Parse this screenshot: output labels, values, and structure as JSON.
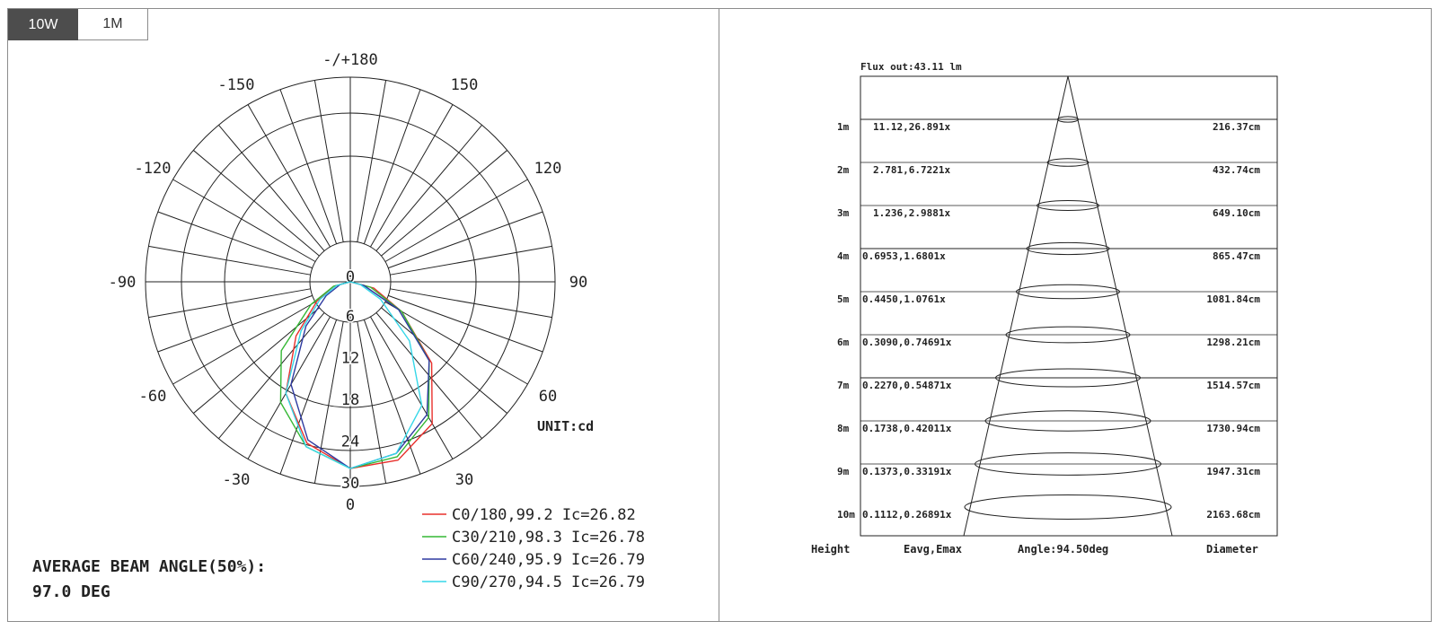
{
  "tabs": [
    {
      "label": "10W",
      "active": true
    },
    {
      "label": "1M",
      "active": false
    }
  ],
  "polar": {
    "top_label": "-/+180",
    "angle_labels": [
      {
        "deg": -150,
        "text": "-150"
      },
      {
        "deg": 150,
        "text": "150"
      },
      {
        "deg": -120,
        "text": "-120"
      },
      {
        "deg": 120,
        "text": "120"
      },
      {
        "deg": -90,
        "text": "-90"
      },
      {
        "deg": 90,
        "text": "90"
      },
      {
        "deg": -60,
        "text": "-60"
      },
      {
        "deg": 60,
        "text": "60"
      },
      {
        "deg": -30,
        "text": "-30"
      },
      {
        "deg": 30,
        "text": "30"
      },
      {
        "deg": 0,
        "text": "0"
      }
    ],
    "radial_labels": [
      "0",
      "6",
      "12",
      "18",
      "24",
      "30"
    ],
    "unit": "UNIT:cd"
  },
  "beam_angle": {
    "label": "AVERAGE BEAM ANGLE(50%):",
    "value": "97.0 DEG"
  },
  "chart_data": [
    {
      "type": "line",
      "subtype": "polar-intensity-distribution",
      "unit_text": "UNIT:cd",
      "radial_ticks": [
        0,
        6,
        12,
        18,
        24,
        30
      ],
      "rmax": 36,
      "angle_ticks_deg": [
        -180,
        -150,
        -120,
        -90,
        -60,
        -30,
        0,
        30,
        60,
        90,
        120,
        150,
        180
      ],
      "series": [
        {
          "name": "C0/180,99.2 Ic=26.82",
          "color": "#e8302c",
          "angles": [
            -90,
            -75,
            -60,
            -45,
            -30,
            -15,
            0,
            15,
            30,
            45,
            60,
            75,
            90
          ],
          "values": [
            0,
            2.5,
            5.5,
            11,
            18.5,
            24,
            26.8,
            26.5,
            23.5,
            16.5,
            8.5,
            3.5,
            0
          ]
        },
        {
          "name": "C30/210,98.3 Ic=26.78",
          "color": "#35b835",
          "angles": [
            -90,
            -75,
            -60,
            -45,
            -30,
            -15,
            0,
            15,
            30,
            45,
            60,
            75,
            90
          ],
          "values": [
            0,
            2.5,
            6.5,
            14,
            20,
            24.5,
            26.8,
            26,
            22.5,
            16,
            8.5,
            3,
            0
          ]
        },
        {
          "name": "C60/240,95.9 Ic=26.79",
          "color": "#2e3aa0",
          "angles": [
            -90,
            -75,
            -60,
            -45,
            -30,
            -15,
            0,
            15,
            30,
            45,
            60,
            75,
            90
          ],
          "values": [
            0,
            1.5,
            4,
            9,
            17,
            23.5,
            26.8,
            25.5,
            22,
            16,
            8,
            2,
            0
          ]
        },
        {
          "name": "C90/270,94.5 Ic=26.79",
          "color": "#35d7e8",
          "angles": [
            -90,
            -75,
            -60,
            -45,
            -30,
            -15,
            0,
            15,
            30,
            45,
            60,
            75,
            90
          ],
          "values": [
            0,
            2,
            5,
            10,
            18.5,
            24.5,
            26.8,
            25.5,
            20.5,
            12,
            5,
            1.5,
            0
          ]
        }
      ]
    },
    {
      "type": "table",
      "subtype": "illuminance-cone-diagram",
      "flux_text": "Flux out:43.11 lm",
      "footer": {
        "height": "Height",
        "e": "Eavg,Emax",
        "angle": "Angle:94.50deg",
        "diameter": "Diameter"
      },
      "rows": [
        {
          "height": "1m",
          "e": "11.12,26.891x",
          "diameter": "216.37cm"
        },
        {
          "height": "2m",
          "e": "2.781,6.7221x",
          "diameter": "432.74cm"
        },
        {
          "height": "3m",
          "e": "1.236,2.9881x",
          "diameter": "649.10cm"
        },
        {
          "height": "4m",
          "e": "0.6953,1.6801x",
          "diameter": "865.47cm"
        },
        {
          "height": "5m",
          "e": "0.4450,1.0761x",
          "diameter": "1081.84cm"
        },
        {
          "height": "6m",
          "e": "0.3090,0.74691x",
          "diameter": "1298.21cm"
        },
        {
          "height": "7m",
          "e": "0.2270,0.54871x",
          "diameter": "1514.57cm"
        },
        {
          "height": "8m",
          "e": "0.1738,0.42011x",
          "diameter": "1730.94cm"
        },
        {
          "height": "9m",
          "e": "0.1373,0.33191x",
          "diameter": "1947.31cm"
        },
        {
          "height": "10m",
          "e": "0.1112,0.26891x",
          "diameter": "2163.68cm"
        }
      ]
    }
  ]
}
